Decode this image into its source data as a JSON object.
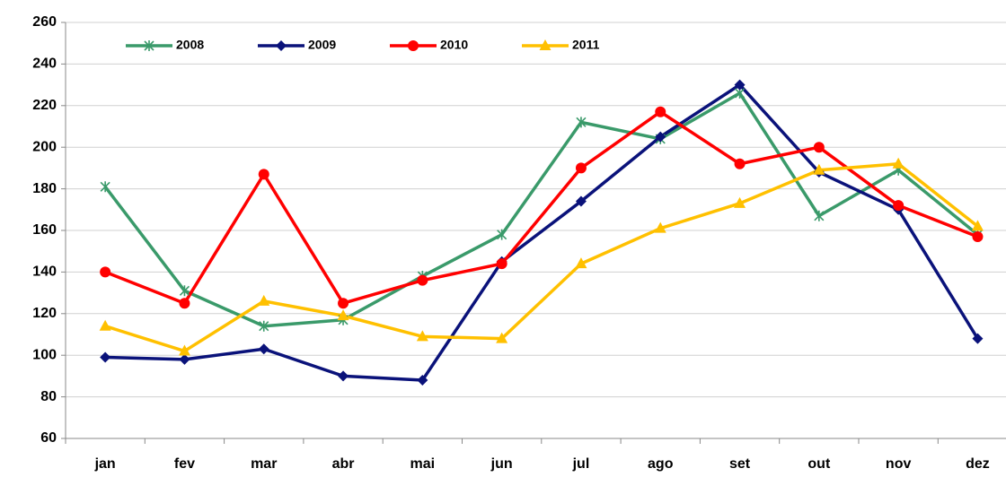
{
  "chart_data": {
    "type": "line",
    "categories": [
      "jan",
      "fev",
      "mar",
      "abr",
      "mai",
      "jun",
      "jul",
      "ago",
      "set",
      "out",
      "nov",
      "dez"
    ],
    "series": [
      {
        "name": "2008",
        "color": "#3a9a6a",
        "marker": "star",
        "values": [
          181,
          131,
          114,
          117,
          138,
          158,
          212,
          204,
          226,
          167,
          189,
          158
        ]
      },
      {
        "name": "2009",
        "color": "#0a127a",
        "marker": "diamond",
        "values": [
          99,
          98,
          103,
          90,
          88,
          145,
          174,
          205,
          230,
          188,
          170,
          108
        ]
      },
      {
        "name": "2010",
        "color": "#ff0000",
        "marker": "circle",
        "values": [
          140,
          125,
          187,
          125,
          136,
          144,
          190,
          217,
          192,
          200,
          172,
          157
        ]
      },
      {
        "name": "2011",
        "color": "#ffc000",
        "marker": "triangle",
        "values": [
          114,
          102,
          126,
          119,
          109,
          108,
          144,
          161,
          173,
          189,
          192,
          162
        ]
      }
    ],
    "ylim": [
      60,
      260
    ],
    "yticks": [
      60,
      80,
      100,
      120,
      140,
      160,
      180,
      200,
      220,
      240,
      260
    ],
    "grid": true,
    "legend": "top"
  }
}
